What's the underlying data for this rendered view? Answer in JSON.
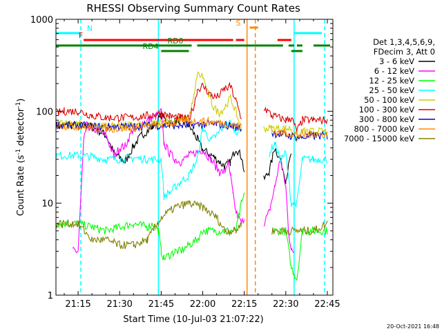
{
  "chart_data": {
    "type": "line",
    "title": "RHESSI Observing Summary Count Rates",
    "xlabel": "Start Time (10-Jul-03 21:07:22)",
    "ylabel_main": "Count Rate (s",
    "ylabel_sup1": "-1",
    "ylabel_mid": " detector",
    "ylabel_sup2": "-1",
    "ylabel_end": ")",
    "yscale": "log",
    "ylim": [
      1,
      1000
    ],
    "xlim": [
      "21:07",
      "22:47"
    ],
    "x_ticks": [
      "21:15",
      "21:30",
      "21:45",
      "22:00",
      "22:15",
      "22:30",
      "22:45"
    ],
    "y_ticks": [
      "1",
      "10",
      "100",
      "1000"
    ],
    "legend_header": [
      "Det 1,3,4,5,6,9,",
      "FDecim 3, Att 0"
    ],
    "legend_position": "right",
    "timestamp": "20-Oct-2021 16:48",
    "series": [
      {
        "name": "3 - 6 keV",
        "color": "#000000",
        "t": [
          "21:07",
          "21:15",
          "21:20",
          "21:25",
          "21:28",
          "21:32",
          "21:35",
          "21:38",
          "21:42",
          "21:45",
          "21:48",
          "21:52",
          "21:55",
          "21:58",
          "22:00",
          "22:04",
          "22:08",
          "22:10",
          "22:12",
          "22:14",
          "22:15",
          "22:16",
          "22:20",
          "22:22",
          "22:24",
          "22:26",
          "22:28",
          "22:30",
          "22:32"
        ],
        "v": [
          70,
          70,
          68,
          55,
          35,
          28,
          42,
          55,
          68,
          90,
          75,
          82,
          70,
          50,
          38,
          32,
          25,
          28,
          40,
          32,
          22,
          null,
          null,
          18,
          22,
          40,
          30,
          18,
          35
        ]
      },
      {
        "name": "6 - 12 keV",
        "color": "#ff00ff",
        "t": [
          "21:07",
          "21:10",
          "21:12",
          "21:13",
          "21:14",
          "21:15",
          "21:17",
          "21:18",
          "21:20",
          "21:25",
          "21:28",
          "21:30",
          "21:32",
          "21:35",
          "21:40",
          "21:43",
          "21:45",
          "21:46",
          "21:48",
          "21:50",
          "21:52",
          "21:55",
          "21:58",
          "22:00",
          "22:03",
          "22:06",
          "22:08",
          "22:09",
          "22:10",
          "22:11",
          "22:12",
          "22:14",
          "22:15",
          "22:16",
          "22:20",
          "22:22",
          "22:24",
          "22:26",
          "22:28",
          "22:30",
          "22:31",
          "22:32",
          "22:33"
        ],
        "v": [
          null,
          null,
          null,
          3,
          3,
          3,
          45,
          70,
          65,
          55,
          32,
          40,
          42,
          65,
          80,
          88,
          100,
          45,
          35,
          30,
          28,
          33,
          36,
          38,
          30,
          22,
          22,
          28,
          20,
          12,
          8,
          6,
          7,
          null,
          null,
          6,
          8,
          15,
          30,
          15,
          5,
          3,
          3
        ]
      },
      {
        "name": "12 - 25 keV",
        "color": "#00ff00",
        "t": [
          "21:07",
          "21:15",
          "21:20",
          "21:25",
          "21:30",
          "21:35",
          "21:40",
          "21:42",
          "21:44",
          "21:45",
          "21:46",
          "21:50",
          "21:52",
          "21:55",
          "21:58",
          "22:00",
          "22:05",
          "22:08",
          "22:10",
          "22:12",
          "22:14",
          "22:15",
          "22:16",
          "22:20",
          "22:25",
          "22:30",
          "22:32",
          "22:34",
          "22:36",
          "22:40",
          "22:45"
        ],
        "v": [
          6,
          6,
          5.5,
          5,
          5.5,
          6,
          5.5,
          6,
          5,
          3,
          2.5,
          3,
          3,
          3.5,
          4,
          5,
          5,
          5,
          5,
          5,
          10,
          12,
          null,
          null,
          5,
          5,
          2,
          1.5,
          5,
          5,
          5
        ]
      },
      {
        "name": "25 - 50 keV",
        "color": "#00ffff",
        "t": [
          "21:07",
          "21:15",
          "21:20",
          "21:25",
          "21:30",
          "21:35",
          "21:40",
          "21:45",
          "21:46",
          "21:48",
          "21:50",
          "21:52",
          "21:55",
          "21:58",
          "22:00",
          "22:03",
          "22:05",
          "22:08",
          "22:10",
          "22:12",
          "22:14",
          "22:15",
          "22:16",
          "22:20",
          "22:24",
          "22:26",
          "22:28",
          "22:30",
          "22:32",
          "22:34",
          "22:36",
          "22:40",
          "22:45"
        ],
        "v": [
          33,
          33,
          32,
          30,
          30,
          31,
          30,
          30,
          12,
          13,
          15,
          17,
          20,
          30,
          65,
          48,
          55,
          70,
          75,
          60,
          65,
          null,
          null,
          null,
          35,
          45,
          30,
          35,
          10,
          10,
          30,
          30,
          30
        ]
      },
      {
        "name": "50 - 100 keV",
        "color": "#cccc00",
        "t": [
          "21:07",
          "21:15",
          "21:20",
          "21:25",
          "21:30",
          "21:35",
          "21:40",
          "21:45",
          "21:48",
          "21:52",
          "21:55",
          "21:57",
          "21:58",
          "22:00",
          "22:02",
          "22:04",
          "22:06",
          "22:08",
          "22:10",
          "22:12",
          "22:14",
          "22:15",
          "22:16",
          "22:20",
          "22:22",
          "22:25",
          "22:30",
          "22:32",
          "22:34",
          "22:36",
          "22:40",
          "22:45"
        ],
        "v": [
          72,
          72,
          70,
          70,
          70,
          70,
          70,
          75,
          80,
          80,
          85,
          150,
          250,
          240,
          150,
          110,
          95,
          110,
          140,
          100,
          60,
          null,
          null,
          null,
          65,
          65,
          65,
          65,
          50,
          60,
          60,
          60
        ]
      },
      {
        "name": "100 - 300 keV",
        "color": "#dd0000",
        "t": [
          "21:07",
          "21:10",
          "21:15",
          "21:20",
          "21:25",
          "21:30",
          "21:35",
          "21:40",
          "21:45",
          "21:48",
          "21:52",
          "21:55",
          "21:57",
          "21:58",
          "22:00",
          "22:03",
          "22:05",
          "22:08",
          "22:10",
          "22:12",
          "22:14",
          "22:15",
          "22:16",
          "22:20",
          "22:22",
          "22:25",
          "22:30",
          "22:32",
          "22:34",
          "22:36",
          "22:40",
          "22:45"
        ],
        "v": [
          95,
          100,
          100,
          90,
          85,
          85,
          85,
          90,
          95,
          88,
          85,
          82,
          120,
          170,
          190,
          150,
          140,
          175,
          185,
          130,
          80,
          null,
          null,
          null,
          110,
          90,
          80,
          85,
          60,
          80,
          80,
          80
        ]
      },
      {
        "name": "300 - 800 keV",
        "color": "#0000cc",
        "t": [
          "21:07",
          "21:10",
          "21:15",
          "21:20",
          "21:25",
          "21:30",
          "21:35",
          "21:40",
          "21:45",
          "21:50",
          "21:55",
          "22:00",
          "22:05",
          "22:10",
          "22:14",
          "22:15",
          "22:16",
          "22:20",
          "22:25",
          "22:30",
          "22:35",
          "22:40",
          "22:45"
        ],
        "v": [
          72,
          70,
          70,
          68,
          68,
          68,
          68,
          70,
          70,
          70,
          70,
          72,
          72,
          70,
          65,
          null,
          null,
          null,
          58,
          55,
          52,
          54,
          54
        ]
      },
      {
        "name": "800 - 7000 keV",
        "color": "#ff8800",
        "t": [
          "21:07",
          "21:10",
          "21:15",
          "21:20",
          "21:25",
          "21:30",
          "21:35",
          "21:40",
          "21:45",
          "21:50",
          "21:55",
          "22:00",
          "22:05",
          "22:10",
          "22:14",
          "22:15",
          "22:16",
          "22:20",
          "22:25",
          "22:30",
          "22:35",
          "22:40",
          "22:45"
        ],
        "v": [
          70,
          70,
          68,
          66,
          65,
          65,
          66,
          68,
          72,
          75,
          78,
          78,
          76,
          72,
          68,
          null,
          null,
          null,
          60,
          58,
          55,
          56,
          56
        ]
      },
      {
        "name": "7000 - 15000 keV",
        "color": "#808000",
        "t": [
          "21:07",
          "21:15",
          "21:20",
          "21:25",
          "21:30",
          "21:35",
          "21:40",
          "21:42",
          "21:45",
          "21:50",
          "21:55",
          "22:00",
          "22:05",
          "22:08",
          "22:10",
          "22:12",
          "22:14",
          "22:15",
          "22:16",
          "22:20",
          "22:25",
          "22:30",
          "22:35",
          "22:40",
          "22:45"
        ],
        "v": [
          6,
          6,
          4,
          4,
          3.5,
          3.5,
          4,
          5,
          7,
          9,
          10,
          9,
          7,
          5,
          5,
          5,
          6,
          null,
          null,
          null,
          5,
          5,
          5,
          5,
          6
        ]
      }
    ],
    "orbit_flags": [
      {
        "label": "N",
        "color": "#00ffff",
        "spans": [
          [
            "21:07",
            "21:16"
          ],
          [
            "22:33",
            "22:43"
          ]
        ]
      },
      {
        "label": "F",
        "color": "#ff0000",
        "spans": [
          [
            "21:17",
            "22:11"
          ],
          [
            "22:12",
            "22:15"
          ],
          [
            "22:27",
            "22:32"
          ]
        ]
      },
      {
        "label": "S",
        "color": "#ff8800",
        "spans": [
          [
            "22:17",
            "22:20"
          ]
        ]
      },
      {
        "label": "RD0",
        "color": "#008000",
        "spans": [
          [
            "21:07",
            "21:56"
          ],
          [
            "21:58",
            "22:29"
          ],
          [
            "22:31",
            "22:33"
          ],
          [
            "22:34",
            "22:36"
          ],
          [
            "22:40",
            "22:46"
          ]
        ]
      },
      {
        "label": "RD4",
        "color": "#008000",
        "spans": [
          [
            "21:45",
            "21:55"
          ],
          [
            "22:32",
            "22:36"
          ]
        ]
      }
    ],
    "vlines": [
      {
        "t": "21:16",
        "color": "#00ffff",
        "style": "dashed"
      },
      {
        "t": "21:44",
        "color": "#00ffff",
        "style": "solid"
      },
      {
        "t": "22:16",
        "color": "#ff8800",
        "style": "solid"
      },
      {
        "t": "22:19",
        "color": "#ff8800",
        "style": "dashed"
      },
      {
        "t": "22:33",
        "color": "#00ffff",
        "style": "solid"
      },
      {
        "t": "22:44",
        "color": "#00ffff",
        "style": "dashed"
      }
    ]
  }
}
